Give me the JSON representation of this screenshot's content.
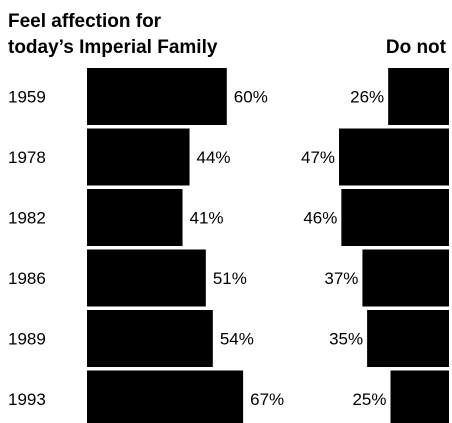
{
  "chart_data": {
    "type": "bar",
    "title_line1": "Feel affection for",
    "title_line2": "today’s Imperial Family",
    "secondary_label": "Do not",
    "categories": [
      "1959",
      "1978",
      "1982",
      "1986",
      "1989",
      "1993"
    ],
    "series": [
      {
        "name": "Feel affection for today’s Imperial Family",
        "values": [
          60,
          44,
          41,
          51,
          54,
          67
        ],
        "value_labels": [
          "60%",
          "44%",
          "41%",
          "51%",
          "54%",
          "67%"
        ]
      },
      {
        "name": "Do not",
        "values": [
          26,
          47,
          46,
          37,
          35,
          25
        ],
        "value_labels": [
          "26%",
          "47%",
          "46%",
          "37%",
          "35%",
          "25%"
        ]
      }
    ],
    "bar_color": "#000000"
  }
}
